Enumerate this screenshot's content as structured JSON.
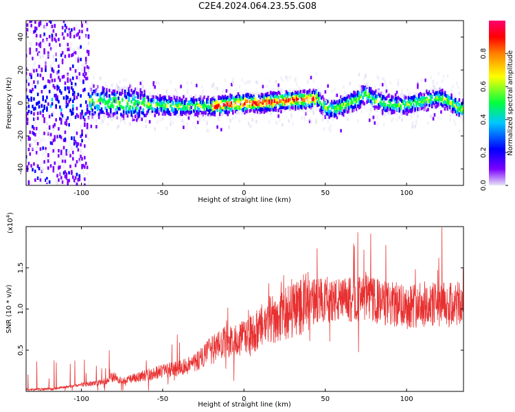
{
  "title": "C2E4.2024.064.23.55.G08",
  "chart_data": [
    {
      "type": "heatmap",
      "xlabel": "Height of straight line (km)",
      "ylabel": "Frequency (Hz)",
      "xlim": [
        -134,
        135
      ],
      "ylim": [
        -50,
        50
      ],
      "xticks": [
        -100,
        -50,
        0,
        50,
        100
      ],
      "yticks": [
        40,
        20,
        0,
        -20,
        -40
      ],
      "grid": false,
      "colorbar": {
        "label": "Normalized spectral amplitude",
        "range": [
          0,
          1
        ],
        "ticks": [
          "0.0",
          "0.2",
          "0.4",
          "0.6",
          "0.8"
        ],
        "colors": [
          "#e0e0f4",
          "#6a00ff",
          "#0000ff",
          "#00ffff",
          "#00ff00",
          "#ffff00",
          "#ff8000",
          "#ff0000",
          "#ff0080"
        ]
      },
      "ridge": {
        "x": [
          -120,
          -100,
          -80,
          -60,
          -40,
          -20,
          -10,
          0,
          10,
          20,
          30,
          40,
          45,
          50,
          55,
          60,
          70,
          75,
          80,
          90,
          100,
          110,
          120,
          125,
          130,
          135
        ],
        "freq": [
          2,
          1,
          0,
          -1,
          -2,
          -2,
          -1,
          0,
          0,
          1,
          2,
          2,
          3,
          -3,
          -4,
          -2,
          2,
          6,
          2,
          -1,
          -1,
          1,
          3,
          2,
          -2,
          -4
        ]
      }
    },
    {
      "type": "line",
      "xlabel": "Height of straight line (km)",
      "ylabel": "SNR (10 * v/v)",
      "scale_label": "(x10",
      "scale_exp": "4",
      "scale_close": ")",
      "xlim": [
        -134,
        135
      ],
      "ylim": [
        0,
        2.0
      ],
      "xticks": [
        -100,
        -50,
        0,
        50,
        100
      ],
      "yticks": [
        "0.5",
        "1.0",
        "1.5"
      ],
      "grid": false,
      "color": "#e83030",
      "series": [
        {
          "x": [
            -134,
            -120,
            -110,
            -100,
            -90,
            -85,
            -80,
            -75,
            -70,
            -60,
            -50,
            -40,
            -30,
            -25,
            -20,
            -15,
            -10,
            -5,
            0,
            5,
            10,
            15,
            20,
            25,
            30,
            35,
            40,
            45,
            50,
            55,
            60,
            70,
            75,
            80,
            90,
            100,
            110,
            120,
            130,
            135
          ],
          "values": [
            0.02,
            0.03,
            0.05,
            0.08,
            0.1,
            0.13,
            0.18,
            0.12,
            0.15,
            0.2,
            0.25,
            0.28,
            0.35,
            0.42,
            0.5,
            0.55,
            0.6,
            0.62,
            0.65,
            0.7,
            0.75,
            0.85,
            0.9,
            0.93,
            1.0,
            1.05,
            1.08,
            1.1,
            1.12,
            1.1,
            1.1,
            1.12,
            1.15,
            1.1,
            1.05,
            1.05,
            1.05,
            1.05,
            1.05,
            1.05
          ]
        }
      ]
    }
  ]
}
